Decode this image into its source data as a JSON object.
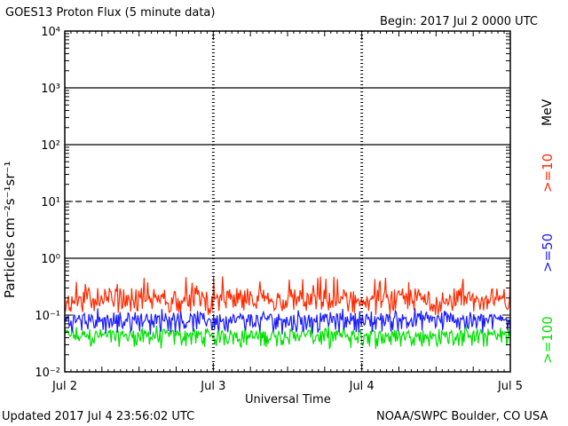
{
  "header": {
    "title": "GOES13 Proton Flux (5 minute data)",
    "begin": "Begin: 2017 Jul 2 0000 UTC"
  },
  "footer": {
    "updated": "Updated 2017 Jul  4 23:56:02 UTC",
    "credit": "NOAA/SWPC Boulder, CO USA"
  },
  "chart_data": {
    "type": "line",
    "title": "GOES13 Proton Flux (5 minute data)",
    "xlabel": "Universal Time",
    "ylabel": "Particles cm⁻²s⁻¹sr⁻¹",
    "yscale": "log",
    "ylim": [
      0.01,
      10000
    ],
    "yticks": [
      "10⁻²",
      "10⁻¹",
      "10⁰",
      "10¹",
      "10²",
      "10³",
      "10⁴"
    ],
    "categories": [
      "Jul 2",
      "Jul 3",
      "Jul 4",
      "Jul 5"
    ],
    "unit_label": "MeV",
    "series": [
      {
        "name": ">=10",
        "color": "#ff2a00",
        "typical": 0.16,
        "range": [
          0.1,
          0.5
        ]
      },
      {
        "name": ">=50",
        "color": "#1a1aff",
        "typical": 0.075,
        "range": [
          0.045,
          0.14
        ]
      },
      {
        "name": ">=100",
        "color": "#00e000",
        "typical": 0.04,
        "range": [
          0.025,
          0.07
        ]
      }
    ],
    "reference_lines": [
      {
        "value": 1,
        "style": "solid"
      },
      {
        "value": 10,
        "style": "dashed"
      },
      {
        "value": 100,
        "style": "solid"
      },
      {
        "value": 1000,
        "style": "solid"
      }
    ],
    "grid": false
  }
}
